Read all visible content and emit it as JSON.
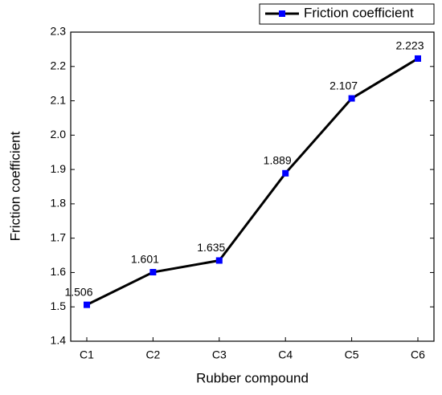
{
  "chart_data": {
    "type": "line",
    "x_label": "Rubber compound",
    "y_label": "Friction coefficient",
    "categories": [
      "C1",
      "C2",
      "C3",
      "C4",
      "C5",
      "C6"
    ],
    "series": [
      {
        "name": "Friction coefficient",
        "color": "#0000ff",
        "line_color": "#000000",
        "values": [
          1.506,
          1.601,
          1.635,
          1.889,
          2.107,
          2.223
        ]
      }
    ],
    "ylim": [
      1.4,
      2.3
    ],
    "yticks": [
      1.4,
      1.5,
      1.6,
      1.7,
      1.8,
      1.9,
      {
        "value": 2,
        "label": "2.0"
      },
      2.1,
      2.2,
      2.3
    ],
    "legend": "top-right"
  }
}
